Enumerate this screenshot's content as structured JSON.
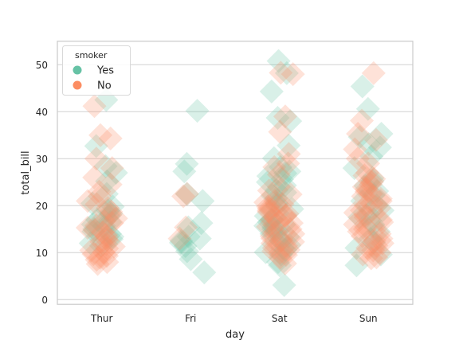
{
  "chart_data": {
    "type": "scatter",
    "title": "",
    "xlabel": "day",
    "ylabel": "total_bill",
    "categories": [
      "Thur",
      "Fri",
      "Sat",
      "Sun"
    ],
    "ylim": [
      -1,
      55
    ],
    "yticks": [
      0,
      10,
      20,
      30,
      40,
      50
    ],
    "grid": true,
    "legend": {
      "title": "smoker",
      "placement": "top-left"
    },
    "marker": "diamond",
    "series": [
      {
        "name": "Yes",
        "color": "#66c2a5",
        "points": [
          [
            "Thur",
            42.5
          ],
          [
            "Thur",
            32.7
          ],
          [
            "Thur",
            28.4
          ],
          [
            "Thur",
            27.0
          ],
          [
            "Thur",
            25.2
          ],
          [
            "Thur",
            22.5
          ],
          [
            "Thur",
            20.5
          ],
          [
            "Thur",
            19.8
          ],
          [
            "Thur",
            19.0
          ],
          [
            "Thur",
            18.3
          ],
          [
            "Thur",
            17.8
          ],
          [
            "Thur",
            17.0
          ],
          [
            "Thur",
            16.5
          ],
          [
            "Thur",
            16.0
          ],
          [
            "Thur",
            15.7
          ],
          [
            "Thur",
            15.0
          ],
          [
            "Thur",
            14.5
          ],
          [
            "Thur",
            14.0
          ],
          [
            "Thur",
            13.4
          ],
          [
            "Thur",
            12.9
          ],
          [
            "Thur",
            12.0
          ],
          [
            "Thur",
            11.5
          ],
          [
            "Fri",
            40.2
          ],
          [
            "Fri",
            28.9
          ],
          [
            "Fri",
            27.3
          ],
          [
            "Fri",
            22.5
          ],
          [
            "Fri",
            21.0
          ],
          [
            "Fri",
            16.3
          ],
          [
            "Fri",
            15.4
          ],
          [
            "Fri",
            13.4
          ],
          [
            "Fri",
            13.0
          ],
          [
            "Fri",
            12.5
          ],
          [
            "Fri",
            12.1
          ],
          [
            "Fri",
            11.4
          ],
          [
            "Fri",
            10.3
          ],
          [
            "Fri",
            8.6
          ],
          [
            "Fri",
            5.8
          ],
          [
            "Sat",
            50.8
          ],
          [
            "Sat",
            48.2
          ],
          [
            "Sat",
            44.3
          ],
          [
            "Sat",
            38.7
          ],
          [
            "Sat",
            38.0
          ],
          [
            "Sat",
            32.8
          ],
          [
            "Sat",
            30.1
          ],
          [
            "Sat",
            28.2
          ],
          [
            "Sat",
            27.3
          ],
          [
            "Sat",
            26.9
          ],
          [
            "Sat",
            26.3
          ],
          [
            "Sat",
            25.6
          ],
          [
            "Sat",
            25.0
          ],
          [
            "Sat",
            24.3
          ],
          [
            "Sat",
            23.3
          ],
          [
            "Sat",
            22.8
          ],
          [
            "Sat",
            22.1
          ],
          [
            "Sat",
            21.6
          ],
          [
            "Sat",
            20.5
          ],
          [
            "Sat",
            20.1
          ],
          [
            "Sat",
            19.3
          ],
          [
            "Sat",
            18.4
          ],
          [
            "Sat",
            17.8
          ],
          [
            "Sat",
            17.0
          ],
          [
            "Sat",
            16.5
          ],
          [
            "Sat",
            16.0
          ],
          [
            "Sat",
            15.7
          ],
          [
            "Sat",
            15.4
          ],
          [
            "Sat",
            15.0
          ],
          [
            "Sat",
            14.6
          ],
          [
            "Sat",
            14.0
          ],
          [
            "Sat",
            13.4
          ],
          [
            "Sat",
            13.0
          ],
          [
            "Sat",
            12.5
          ],
          [
            "Sat",
            11.6
          ],
          [
            "Sat",
            11.0
          ],
          [
            "Sat",
            10.6
          ],
          [
            "Sat",
            10.1
          ],
          [
            "Sat",
            9.6
          ],
          [
            "Sat",
            8.0
          ],
          [
            "Sat",
            7.3
          ],
          [
            "Sat",
            3.1
          ],
          [
            "Sun",
            45.4
          ],
          [
            "Sun",
            40.6
          ],
          [
            "Sun",
            35.3
          ],
          [
            "Sun",
            34.6
          ],
          [
            "Sun",
            33.1
          ],
          [
            "Sun",
            32.4
          ],
          [
            "Sun",
            30.5
          ],
          [
            "Sun",
            28.0
          ],
          [
            "Sun",
            25.9
          ],
          [
            "Sun",
            25.3
          ],
          [
            "Sun",
            24.2
          ],
          [
            "Sun",
            23.1
          ],
          [
            "Sun",
            22.2
          ],
          [
            "Sun",
            21.0
          ],
          [
            "Sun",
            20.0
          ],
          [
            "Sun",
            19.0
          ],
          [
            "Sun",
            18.3
          ],
          [
            "Sun",
            17.5
          ],
          [
            "Sun",
            16.8
          ],
          [
            "Sun",
            16.0
          ],
          [
            "Sun",
            14.5
          ],
          [
            "Sun",
            13.0
          ],
          [
            "Sun",
            12.2
          ],
          [
            "Sun",
            11.0
          ],
          [
            "Sun",
            9.6
          ],
          [
            "Sun",
            7.3
          ]
        ]
      },
      {
        "name": "No",
        "color": "#fc8d62",
        "points": [
          [
            "Thur",
            41.2
          ],
          [
            "Thur",
            35.0
          ],
          [
            "Thur",
            34.3
          ],
          [
            "Thur",
            30.0
          ],
          [
            "Thur",
            28.0
          ],
          [
            "Thur",
            26.0
          ],
          [
            "Thur",
            24.5
          ],
          [
            "Thur",
            23.0
          ],
          [
            "Thur",
            22.0
          ],
          [
            "Thur",
            21.0
          ],
          [
            "Thur",
            20.3
          ],
          [
            "Thur",
            19.5
          ],
          [
            "Thur",
            18.7
          ],
          [
            "Thur",
            18.0
          ],
          [
            "Thur",
            17.3
          ],
          [
            "Thur",
            16.7
          ],
          [
            "Thur",
            16.3
          ],
          [
            "Thur",
            15.8
          ],
          [
            "Thur",
            15.3
          ],
          [
            "Thur",
            14.8
          ],
          [
            "Thur",
            14.3
          ],
          [
            "Thur",
            13.8
          ],
          [
            "Thur",
            13.3
          ],
          [
            "Thur",
            12.7
          ],
          [
            "Thur",
            12.3
          ],
          [
            "Thur",
            11.8
          ],
          [
            "Thur",
            11.3
          ],
          [
            "Thur",
            10.9
          ],
          [
            "Thur",
            10.5
          ],
          [
            "Thur",
            10.1
          ],
          [
            "Thur",
            9.7
          ],
          [
            "Thur",
            9.3
          ],
          [
            "Thur",
            8.9
          ],
          [
            "Thur",
            8.5
          ],
          [
            "Thur",
            8.0
          ],
          [
            "Thur",
            7.6
          ],
          [
            "Fri",
            22.5
          ],
          [
            "Fri",
            22.0
          ],
          [
            "Fri",
            15.4
          ],
          [
            "Fri",
            13.0
          ],
          [
            "Sat",
            48.3
          ],
          [
            "Sat",
            48.0
          ],
          [
            "Sat",
            39.0
          ],
          [
            "Sat",
            35.7
          ],
          [
            "Sat",
            31.0
          ],
          [
            "Sat",
            29.0
          ],
          [
            "Sat",
            28.2
          ],
          [
            "Sat",
            26.6
          ],
          [
            "Sat",
            24.0
          ],
          [
            "Sat",
            23.2
          ],
          [
            "Sat",
            22.4
          ],
          [
            "Sat",
            21.0
          ],
          [
            "Sat",
            20.7
          ],
          [
            "Sat",
            20.3
          ],
          [
            "Sat",
            20.0
          ],
          [
            "Sat",
            19.8
          ],
          [
            "Sat",
            19.4
          ],
          [
            "Sat",
            19.0
          ],
          [
            "Sat",
            18.7
          ],
          [
            "Sat",
            18.3
          ],
          [
            "Sat",
            18.0
          ],
          [
            "Sat",
            17.8
          ],
          [
            "Sat",
            17.5
          ],
          [
            "Sat",
            17.0
          ],
          [
            "Sat",
            16.6
          ],
          [
            "Sat",
            16.3
          ],
          [
            "Sat",
            15.9
          ],
          [
            "Sat",
            15.5
          ],
          [
            "Sat",
            15.0
          ],
          [
            "Sat",
            14.5
          ],
          [
            "Sat",
            14.0
          ],
          [
            "Sat",
            13.5
          ],
          [
            "Sat",
            13.0
          ],
          [
            "Sat",
            12.7
          ],
          [
            "Sat",
            12.3
          ],
          [
            "Sat",
            12.0
          ],
          [
            "Sat",
            11.5
          ],
          [
            "Sat",
            11.0
          ],
          [
            "Sat",
            10.6
          ],
          [
            "Sat",
            10.3
          ],
          [
            "Sat",
            10.0
          ],
          [
            "Sat",
            9.5
          ],
          [
            "Sat",
            9.0
          ],
          [
            "Sat",
            7.7
          ],
          [
            "Sun",
            48.2
          ],
          [
            "Sun",
            38.1
          ],
          [
            "Sun",
            35.3
          ],
          [
            "Sun",
            34.0
          ],
          [
            "Sun",
            32.0
          ],
          [
            "Sun",
            30.0
          ],
          [
            "Sun",
            29.0
          ],
          [
            "Sun",
            27.0
          ],
          [
            "Sun",
            26.4
          ],
          [
            "Sun",
            25.7
          ],
          [
            "Sun",
            25.0
          ],
          [
            "Sun",
            24.5
          ],
          [
            "Sun",
            24.0
          ],
          [
            "Sun",
            23.5
          ],
          [
            "Sun",
            23.0
          ],
          [
            "Sun",
            22.5
          ],
          [
            "Sun",
            22.0
          ],
          [
            "Sun",
            21.5
          ],
          [
            "Sun",
            21.0
          ],
          [
            "Sun",
            20.5
          ],
          [
            "Sun",
            20.0
          ],
          [
            "Sun",
            19.5
          ],
          [
            "Sun",
            19.0
          ],
          [
            "Sun",
            18.5
          ],
          [
            "Sun",
            18.0
          ],
          [
            "Sun",
            17.5
          ],
          [
            "Sun",
            17.0
          ],
          [
            "Sun",
            16.5
          ],
          [
            "Sun",
            16.0
          ],
          [
            "Sun",
            15.5
          ],
          [
            "Sun",
            15.0
          ],
          [
            "Sun",
            14.5
          ],
          [
            "Sun",
            14.0
          ],
          [
            "Sun",
            13.5
          ],
          [
            "Sun",
            13.0
          ],
          [
            "Sun",
            12.5
          ],
          [
            "Sun",
            12.0
          ],
          [
            "Sun",
            11.5
          ],
          [
            "Sun",
            11.0
          ],
          [
            "Sun",
            10.5
          ],
          [
            "Sun",
            10.0
          ],
          [
            "Sun",
            9.6
          ],
          [
            "Sun",
            9.0
          ],
          [
            "Sun",
            8.8
          ]
        ]
      }
    ]
  }
}
